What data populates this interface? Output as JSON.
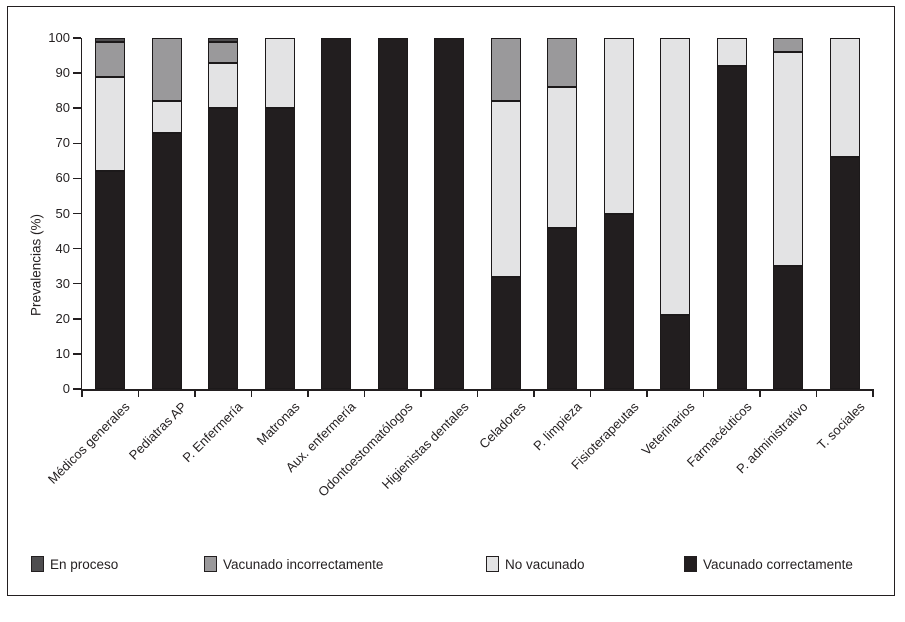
{
  "chart_data": {
    "type": "bar",
    "stacked": true,
    "title": "",
    "xlabel": "",
    "ylabel": "Prevalencias (%)",
    "ylim": [
      0,
      100
    ],
    "y_ticks": [
      0,
      10,
      20,
      30,
      40,
      50,
      60,
      70,
      80,
      90,
      100
    ],
    "grid": false,
    "legend_position": "bottom",
    "categories": [
      "Médicos generales",
      "Pediatras AP",
      "P. Enfermería",
      "Matronas",
      "Aux. enfermería",
      "Odontoestomatólogos",
      "Higienistas dentales",
      "Celadores",
      "P. limpieza",
      "Fisioterapeutas",
      "Veterinarios",
      "Farmacéuticos",
      "P. administrativo",
      "T. sociales"
    ],
    "series": [
      {
        "name": "Vacunado correctamente",
        "color": "#221e1f",
        "values": [
          62,
          73,
          80,
          80,
          100,
          100,
          100,
          32,
          46,
          50,
          21,
          92,
          35,
          66
        ]
      },
      {
        "name": "No vacunado",
        "color": "#e3e3e4",
        "values": [
          27,
          9,
          13,
          20,
          0,
          0,
          0,
          50,
          40,
          50,
          79,
          8,
          61,
          34
        ]
      },
      {
        "name": "Vacunado incorrectamente",
        "color": "#9a999b",
        "values": [
          10,
          18,
          6,
          0,
          0,
          0,
          0,
          18,
          14,
          0,
          0,
          0,
          4,
          0
        ]
      },
      {
        "name": "En proceso",
        "color": "#4e4d4f",
        "values": [
          1,
          0,
          1,
          0,
          0,
          0,
          0,
          0,
          0,
          0,
          0,
          0,
          0,
          0
        ]
      }
    ],
    "legend": [
      {
        "label": "En proceso",
        "color": "#4e4d4f"
      },
      {
        "label": "Vacunado incorrectamente",
        "color": "#9a999b"
      },
      {
        "label": "No vacunado",
        "color": "#e3e3e4"
      },
      {
        "label": "Vacunado correctamente",
        "color": "#221e1f"
      }
    ]
  }
}
